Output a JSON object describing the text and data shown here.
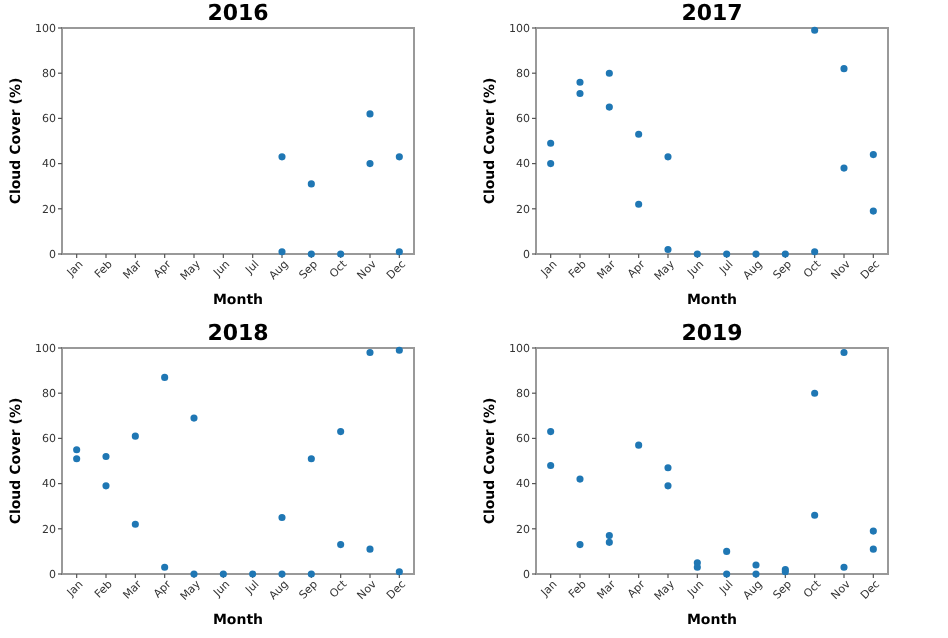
{
  "chart_data": [
    {
      "type": "scatter",
      "title": "2016",
      "xlabel": "Month",
      "ylabel": "Cloud Cover (%)",
      "categories": [
        "Jan",
        "Feb",
        "Mar",
        "Apr",
        "May",
        "Jun",
        "Jul",
        "Aug",
        "Sep",
        "Oct",
        "Nov",
        "Dec"
      ],
      "ylim": [
        0,
        100
      ],
      "yticks": [
        0,
        20,
        40,
        60,
        80,
        100
      ],
      "marker": "circle",
      "series": [
        {
          "color": "#1f77b4",
          "x": [
            "Aug",
            "Aug",
            "Sep",
            "Sep",
            "Oct",
            "Nov",
            "Nov",
            "Dec",
            "Dec"
          ],
          "values": [
            43,
            1,
            31,
            0,
            0,
            62,
            40,
            43,
            1
          ]
        }
      ]
    },
    {
      "type": "scatter",
      "title": "2017",
      "xlabel": "Month",
      "ylabel": "Cloud Cover (%)",
      "categories": [
        "Jan",
        "Feb",
        "Mar",
        "Apr",
        "May",
        "Jun",
        "Jul",
        "Aug",
        "Sep",
        "Oct",
        "Nov",
        "Dec"
      ],
      "ylim": [
        0,
        100
      ],
      "yticks": [
        0,
        20,
        40,
        60,
        80,
        100
      ],
      "marker": "circle",
      "series": [
        {
          "color": "#1f77b4",
          "x": [
            "Jan",
            "Jan",
            "Feb",
            "Feb",
            "Mar",
            "Mar",
            "Apr",
            "Apr",
            "May",
            "May",
            "Jun",
            "Jul",
            "Aug",
            "Sep",
            "Oct",
            "Oct",
            "Nov",
            "Nov",
            "Dec",
            "Dec"
          ],
          "values": [
            49,
            40,
            76,
            71,
            80,
            65,
            53,
            22,
            43,
            2,
            0,
            0,
            0,
            0,
            99,
            1,
            82,
            38,
            44,
            19
          ]
        }
      ]
    },
    {
      "type": "scatter",
      "title": "2018",
      "xlabel": "Month",
      "ylabel": "Cloud Cover (%)",
      "categories": [
        "Jan",
        "Feb",
        "Mar",
        "Apr",
        "May",
        "Jun",
        "Jul",
        "Aug",
        "Sep",
        "Oct",
        "Nov",
        "Dec"
      ],
      "ylim": [
        0,
        100
      ],
      "yticks": [
        0,
        20,
        40,
        60,
        80,
        100
      ],
      "marker": "circle",
      "series": [
        {
          "color": "#1f77b4",
          "x": [
            "Jan",
            "Jan",
            "Feb",
            "Feb",
            "Mar",
            "Mar",
            "Apr",
            "Apr",
            "May",
            "May",
            "Jun",
            "Jul",
            "Aug",
            "Aug",
            "Sep",
            "Sep",
            "Oct",
            "Oct",
            "Nov",
            "Nov",
            "Dec",
            "Dec"
          ],
          "values": [
            55,
            51,
            52,
            39,
            61,
            22,
            87,
            3,
            69,
            0,
            0,
            0,
            25,
            0,
            51,
            0,
            63,
            13,
            98,
            11,
            99,
            1
          ]
        }
      ]
    },
    {
      "type": "scatter",
      "title": "2019",
      "xlabel": "Month",
      "ylabel": "Cloud Cover (%)",
      "categories": [
        "Jan",
        "Feb",
        "Mar",
        "Apr",
        "May",
        "Jun",
        "Jul",
        "Aug",
        "Sep",
        "Oct",
        "Nov",
        "Dec"
      ],
      "ylim": [
        0,
        100
      ],
      "yticks": [
        0,
        20,
        40,
        60,
        80,
        100
      ],
      "marker": "circle",
      "series": [
        {
          "color": "#1f77b4",
          "x": [
            "Jan",
            "Jan",
            "Feb",
            "Feb",
            "Mar",
            "Mar",
            "Apr",
            "May",
            "May",
            "Jun",
            "Jun",
            "Jul",
            "Jul",
            "Aug",
            "Aug",
            "Sep",
            "Sep",
            "Oct",
            "Oct",
            "Nov",
            "Nov",
            "Dec",
            "Dec"
          ],
          "values": [
            63,
            48,
            42,
            13,
            17,
            14,
            57,
            47,
            39,
            5,
            3,
            10,
            0,
            4,
            0,
            2,
            1,
            80,
            26,
            98,
            3,
            19,
            11
          ]
        }
      ]
    }
  ]
}
